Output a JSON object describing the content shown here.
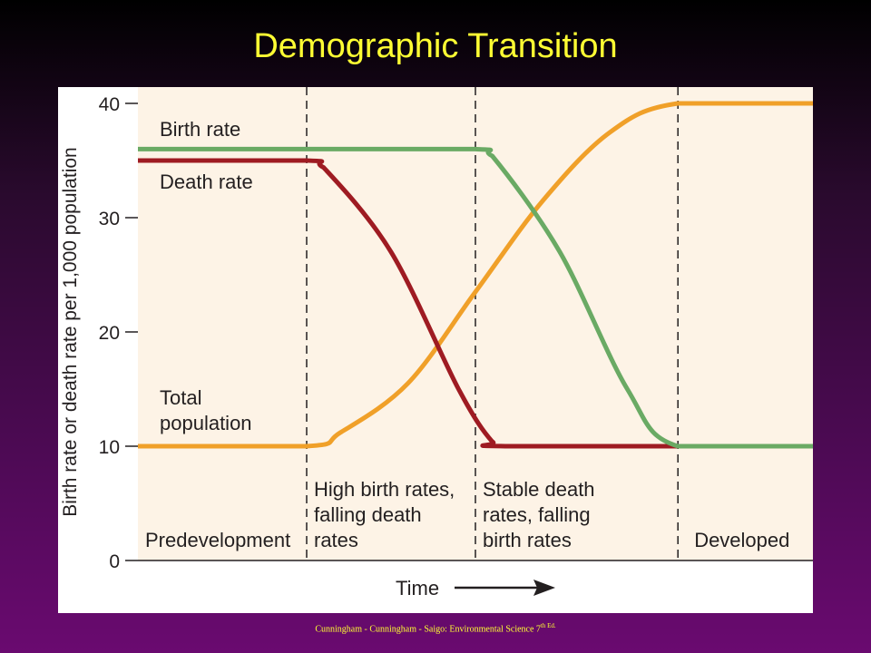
{
  "slide": {
    "title": "Demographic Transition",
    "footer": "Cunningham - Cunningham - Saigo: Environmental Science 7",
    "footer_sup": "th Ed."
  },
  "colors": {
    "birth_rate": "#6aaa64",
    "death_rate": "#9e1b22",
    "total_population": "#f0a029",
    "shading": "#fdf3e6",
    "title": "#ffff33"
  },
  "chart_data": {
    "type": "line",
    "title": "Demographic Transition",
    "xlabel": "Time",
    "ylabel": "Birth rate or death rate per 1,000 population",
    "ylim": [
      0,
      40
    ],
    "yticks": [
      0,
      10,
      20,
      30,
      40
    ],
    "grid": false,
    "stage_boundaries": [
      1,
      2,
      3.2
    ],
    "x_range": [
      0,
      4
    ],
    "stages": [
      {
        "lines": [
          "Predevelopment"
        ]
      },
      {
        "lines": [
          "High birth rates,",
          "falling death",
          "rates"
        ]
      },
      {
        "lines": [
          "Stable death",
          "rates, falling",
          "birth rates"
        ]
      },
      {
        "lines": [
          "Developed"
        ]
      }
    ],
    "series": [
      {
        "name": "Birth rate",
        "label_lines": [
          "Birth rate"
        ],
        "color_key": "birth_rate",
        "x": [
          0,
          1,
          2,
          2.1,
          2.5,
          2.9,
          3.2,
          4
        ],
        "values": [
          36,
          36,
          36,
          35.4,
          27,
          15,
          10,
          10
        ]
      },
      {
        "name": "Death rate",
        "label_lines": [
          "Death rate"
        ],
        "color_key": "death_rate",
        "x": [
          0,
          1,
          1.1,
          1.5,
          1.9,
          2.1,
          2.2,
          4
        ],
        "values": [
          35,
          35,
          34.4,
          27,
          15,
          10.4,
          10,
          10
        ]
      },
      {
        "name": "Total population",
        "label_lines": [
          "Total",
          "population"
        ],
        "color_key": "total_population",
        "x": [
          0,
          1,
          1.2,
          1.6,
          2,
          2.4,
          2.8,
          3.2,
          4
        ],
        "values": [
          10,
          10,
          11.2,
          15.5,
          23.5,
          31.5,
          37.5,
          40,
          40
        ]
      }
    ]
  }
}
